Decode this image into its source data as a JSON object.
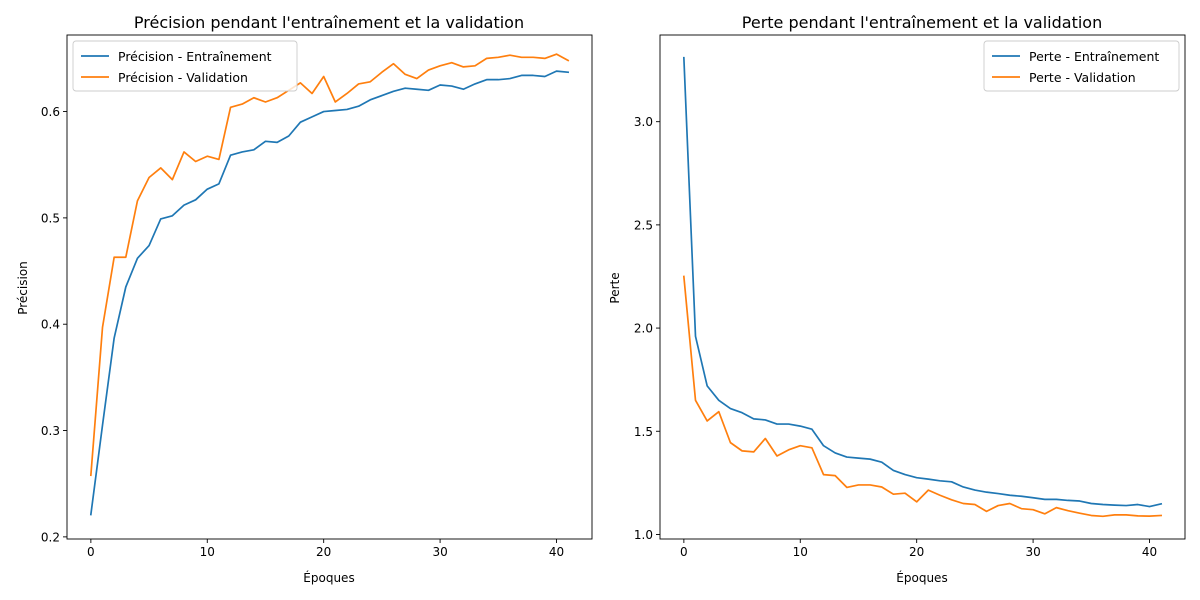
{
  "colors": {
    "series_1": "#1f77b4",
    "series_2": "#ff7f0e"
  },
  "chart_data": [
    {
      "type": "line",
      "title": "Précision pendant l'entraînement et la validation",
      "xlabel": "Époques",
      "ylabel": "Précision",
      "xlim": [
        -2.05,
        43.05
      ],
      "ylim": [
        0.198,
        0.672
      ],
      "xticks": [
        0,
        10,
        20,
        30,
        40
      ],
      "yticks": [
        0.2,
        0.3,
        0.4,
        0.5,
        0.6
      ],
      "xtick_labels": [
        "0",
        "10",
        "20",
        "30",
        "40"
      ],
      "ytick_labels": [
        "0.2",
        "0.3",
        "0.4",
        "0.5",
        "0.6"
      ],
      "grid": false,
      "legend_position": "top-left",
      "x": [
        0,
        1,
        2,
        3,
        4,
        5,
        6,
        7,
        8,
        9,
        10,
        11,
        12,
        13,
        14,
        15,
        16,
        17,
        18,
        19,
        20,
        21,
        22,
        23,
        24,
        25,
        26,
        27,
        28,
        29,
        30,
        31,
        32,
        33,
        34,
        35,
        36,
        37,
        38,
        39,
        40,
        41
      ],
      "series": [
        {
          "name": "Précision - Entraînement",
          "color": "#1f77b4",
          "values": [
            0.221,
            0.305,
            0.387,
            0.435,
            0.462,
            0.474,
            0.499,
            0.502,
            0.512,
            0.517,
            0.527,
            0.532,
            0.559,
            0.562,
            0.564,
            0.572,
            0.571,
            0.577,
            0.59,
            0.595,
            0.6,
            0.601,
            0.602,
            0.605,
            0.611,
            0.615,
            0.619,
            0.622,
            0.621,
            0.62,
            0.625,
            0.624,
            0.621,
            0.626,
            0.63,
            0.63,
            0.631,
            0.634,
            0.634,
            0.633,
            0.638,
            0.637
          ]
        },
        {
          "name": "Précision - Validation",
          "color": "#ff7f0e",
          "values": [
            0.258,
            0.397,
            0.463,
            0.463,
            0.516,
            0.538,
            0.547,
            0.536,
            0.562,
            0.553,
            0.558,
            0.555,
            0.604,
            0.607,
            0.613,
            0.609,
            0.613,
            0.62,
            0.627,
            0.617,
            0.633,
            0.609,
            0.617,
            0.626,
            0.628,
            0.637,
            0.645,
            0.635,
            0.631,
            0.639,
            0.643,
            0.646,
            0.642,
            0.643,
            0.65,
            0.651,
            0.653,
            0.651,
            0.651,
            0.65,
            0.654,
            0.648
          ]
        }
      ]
    },
    {
      "type": "line",
      "title": "Perte pendant l'entraînement et la validation",
      "xlabel": "Époques",
      "ylabel": "Perte",
      "xlim": [
        -2.05,
        43.05
      ],
      "ylim": [
        0.978,
        3.42
      ],
      "xticks": [
        0,
        10,
        20,
        30,
        40
      ],
      "yticks": [
        1.0,
        1.5,
        2.0,
        2.5,
        3.0
      ],
      "xtick_labels": [
        "0",
        "10",
        "20",
        "30",
        "40"
      ],
      "ytick_labels": [
        "1.0",
        "1.5",
        "2.0",
        "2.5",
        "3.0"
      ],
      "grid": false,
      "legend_position": "top-right",
      "x": [
        0,
        1,
        2,
        3,
        4,
        5,
        6,
        7,
        8,
        9,
        10,
        11,
        12,
        13,
        14,
        15,
        16,
        17,
        18,
        19,
        20,
        21,
        22,
        23,
        24,
        25,
        26,
        27,
        28,
        29,
        30,
        31,
        32,
        33,
        34,
        35,
        36,
        37,
        38,
        39,
        40,
        41
      ],
      "series": [
        {
          "name": "Perte - Entraînement",
          "color": "#1f77b4",
          "values": [
            3.31,
            1.96,
            1.72,
            1.65,
            1.61,
            1.59,
            1.56,
            1.555,
            1.535,
            1.535,
            1.525,
            1.51,
            1.43,
            1.395,
            1.375,
            1.37,
            1.365,
            1.35,
            1.31,
            1.29,
            1.275,
            1.268,
            1.26,
            1.255,
            1.23,
            1.215,
            1.205,
            1.198,
            1.19,
            1.185,
            1.178,
            1.17,
            1.17,
            1.165,
            1.162,
            1.15,
            1.145,
            1.142,
            1.14,
            1.145,
            1.135,
            1.148
          ]
        },
        {
          "name": "Perte - Validation",
          "color": "#ff7f0e",
          "values": [
            2.25,
            1.65,
            1.55,
            1.595,
            1.445,
            1.405,
            1.4,
            1.465,
            1.38,
            1.41,
            1.43,
            1.42,
            1.29,
            1.285,
            1.228,
            1.24,
            1.24,
            1.23,
            1.195,
            1.2,
            1.158,
            1.215,
            1.19,
            1.168,
            1.15,
            1.145,
            1.112,
            1.14,
            1.15,
            1.125,
            1.12,
            1.1,
            1.13,
            1.115,
            1.103,
            1.092,
            1.088,
            1.095,
            1.095,
            1.09,
            1.089,
            1.092
          ]
        }
      ]
    }
  ]
}
